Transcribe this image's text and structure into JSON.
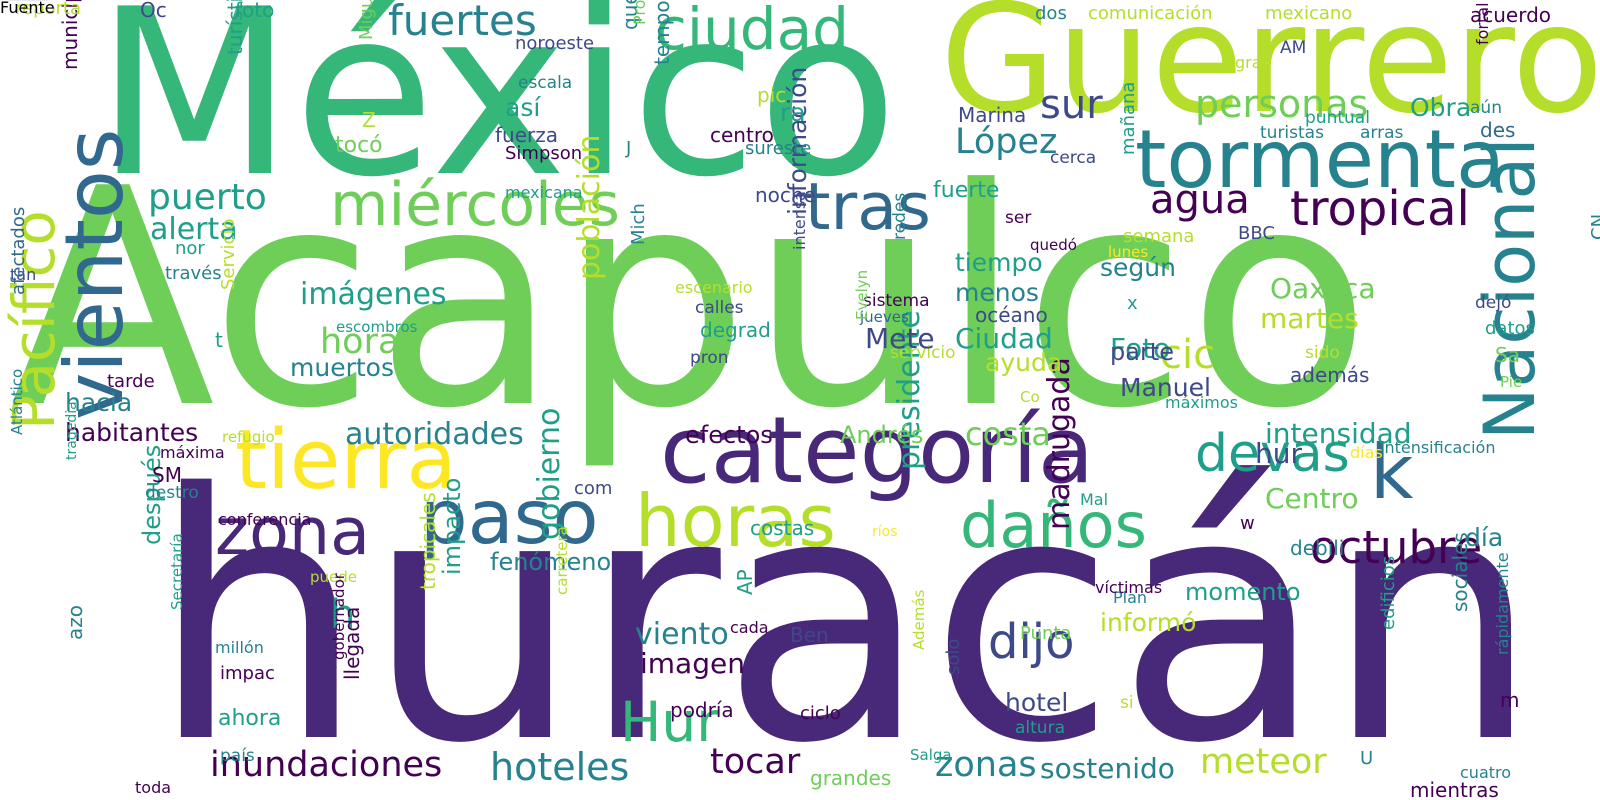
{
  "palette": {
    "dark_purple": "#440154",
    "indigo": "#482878",
    "blue": "#3e4989",
    "steel_blue": "#31688e",
    "teal_blue": "#26828e",
    "teal": "#1f9e89",
    "green": "#35b779",
    "light_green": "#6ece58",
    "lime": "#b5de2b",
    "yellow": "#fde725"
  },
  "words": [
    "Acapulco",
    "huracán",
    "México",
    "Guerrero",
    "tormenta",
    "categoría",
    "vientos",
    "Pacífico",
    "Nacional",
    "lluvias",
    "tierra",
    "paso",
    "horas",
    "zona",
    "daños",
    "miércoles",
    "tras",
    "ciudad",
    "devas",
    "k",
    "Hur",
    "tropical",
    "octubre",
    "fuertes",
    "dijo",
    "sur",
    "agua",
    "personas",
    "López",
    "puerto",
    "alerta",
    "imágenes",
    "hora",
    "h",
    "autoridades",
    "inundaciones",
    "hoteles",
    "tocar",
    "zonas",
    "meteor",
    "sostenido",
    "gobierno",
    "madrugada",
    "presidente",
    "población",
    "información",
    "viento",
    "imagen",
    "intensidad",
    "Centro",
    "costa",
    "cic",
    "Oaxaca",
    "martes",
    "Foto",
    "Ciudad",
    "según",
    "tiempo",
    "menos",
    "océano",
    "ayuda",
    "muertos",
    "hacia",
    "habitantes",
    "efectos",
    "Andrés",
    "hur",
    "Mete",
    "Manuel",
    "parte",
    "después",
    "impacto",
    "fenómeno",
    "informó",
    "momento",
    "hotel",
    "Obra",
    "noche",
    "así",
    "fuerza",
    "centro",
    "ra",
    "tocó",
    "Z",
    "pic",
    "municipios",
    "turística",
    "Miguel",
    "noroeste",
    "escala",
    "Simpson",
    "quedaron",
    "temporada",
    "sureste",
    "mexicana",
    "nor",
    "través",
    "tan",
    "afectados",
    "reporta",
    "Oc",
    "foto",
    "dos",
    "comunicación",
    "mexicano",
    "acuerdo",
    "AM",
    "fortal",
    "gran",
    "aún",
    "puntual",
    "turistas",
    "arras",
    "des",
    "cerca",
    "Protección",
    "Servicio",
    "t",
    "tarde",
    "refugio",
    "máxima",
    "SM",
    "destro",
    "conferencia",
    "puede",
    "tragedia",
    "Atlántico",
    "azo",
    "millón",
    "impac",
    "ahora",
    "país",
    "toda",
    "grandes",
    "costas",
    "ríos",
    "gobernador",
    "Secretaría",
    "llegada",
    "tropicales",
    "carretera",
    "AP",
    "cada",
    "Ben",
    "podría",
    "ciclo",
    "Además",
    "solo",
    "altura",
    "Salga",
    "Punta",
    "si",
    "edificios",
    "rápidamente",
    "cuatro",
    "mientras",
    "U",
    "m",
    "sociales",
    "Plan",
    "víctimas",
    "Mal",
    "w",
    "debili",
    "días",
    "día",
    "CN",
    "intensificación",
    "máximos",
    "además",
    "Pie",
    "Sa",
    "datos",
    "dejó",
    "sido",
    "Co",
    "servicio",
    "jueves",
    "sistema",
    "calles",
    "degrad",
    "pron",
    "Evelyn",
    "escombros",
    "escenario",
    "Mich",
    "intensa",
    "lunes",
    "semana",
    "redes",
    "ser",
    "quedó",
    "BBC",
    "Marina",
    "fuerte",
    "mañana",
    "com",
    "J",
    "x",
    "Fuente"
  ]
}
